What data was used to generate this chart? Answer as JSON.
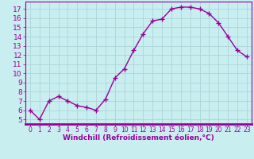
{
  "x": [
    0,
    1,
    2,
    3,
    4,
    5,
    6,
    7,
    8,
    9,
    10,
    11,
    12,
    13,
    14,
    15,
    16,
    17,
    18,
    19,
    20,
    21,
    22,
    23
  ],
  "y": [
    6.0,
    5.0,
    7.0,
    7.5,
    7.0,
    6.5,
    6.3,
    6.0,
    7.2,
    9.5,
    10.5,
    12.5,
    14.3,
    15.7,
    15.9,
    17.0,
    17.2,
    17.2,
    17.0,
    16.5,
    15.5,
    14.0,
    12.5,
    11.8
  ],
  "line_color": "#990099",
  "marker": "+",
  "marker_size": 4,
  "xlabel": "Windchill (Refroidissement éolien,°C)",
  "ylabel_ticks": [
    5,
    6,
    7,
    8,
    9,
    10,
    11,
    12,
    13,
    14,
    15,
    16,
    17
  ],
  "xlim": [
    -0.5,
    23.5
  ],
  "ylim": [
    4.5,
    17.8
  ],
  "background_color": "#c8eef0",
  "grid_color": "#b0d8dc",
  "tick_color": "#990099",
  "label_color": "#990099",
  "xlabel_fontsize": 6.5,
  "ytick_fontsize": 6.5,
  "xtick_fontsize": 5.5,
  "xtick_labels": [
    "0",
    "1",
    "2",
    "3",
    "4",
    "5",
    "6",
    "7",
    "8",
    "9",
    "10",
    "11",
    "12",
    "13",
    "14",
    "15",
    "16",
    "17",
    "18",
    "19",
    "20",
    "21",
    "22",
    "23"
  ],
  "line_width": 1.0,
  "marker_size_line": 3
}
